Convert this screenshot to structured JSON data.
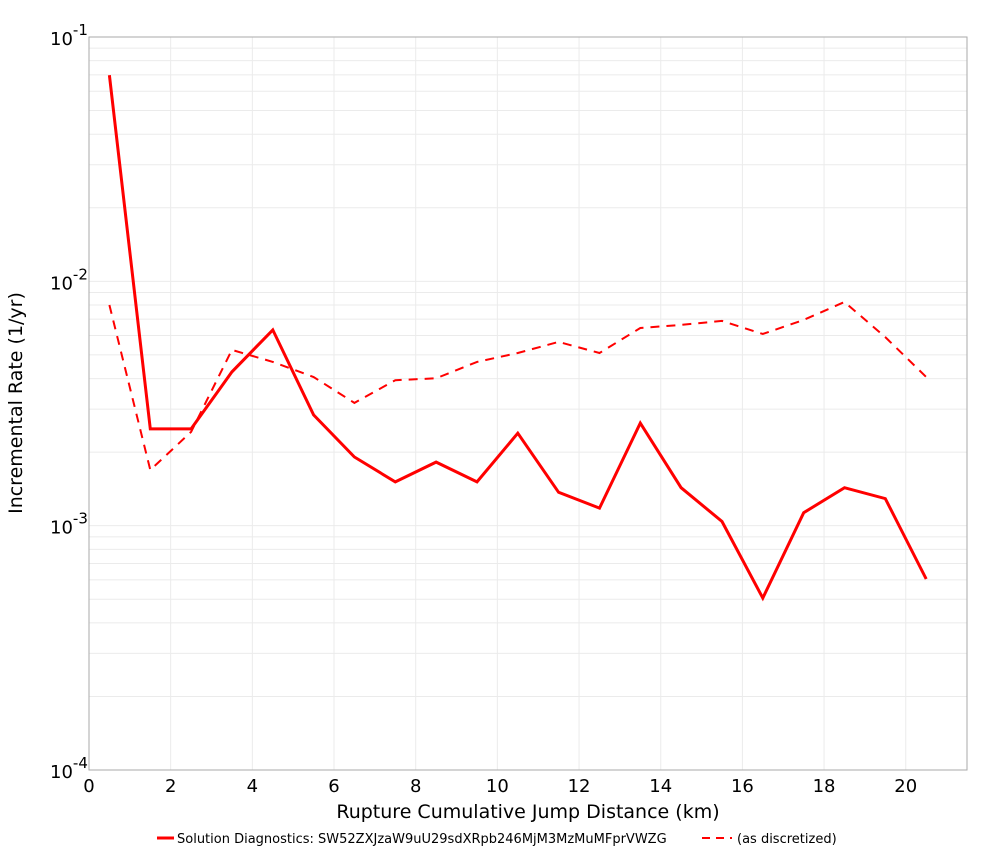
{
  "chart_data": {
    "type": "line",
    "title": "",
    "xlabel": "Rupture Cumulative Jump Distance (km)",
    "ylabel": "Incremental Rate (1/yr)",
    "xlim": [
      0,
      21.5
    ],
    "ylim": [
      0.0001,
      0.1
    ],
    "yscale": "log",
    "grid": true,
    "legend_position": "bottom",
    "x_ticks": [
      0,
      2,
      4,
      6,
      8,
      10,
      12,
      14,
      16,
      18,
      20
    ],
    "y_ticks": [
      {
        "value": 0.1,
        "base": "10",
        "exp": "-1"
      },
      {
        "value": 0.01,
        "base": "10",
        "exp": "-2"
      },
      {
        "value": 0.001,
        "base": "10",
        "exp": "-3"
      },
      {
        "value": 0.0001,
        "base": "10",
        "exp": "-4"
      }
    ],
    "x": [
      0.5,
      1.5,
      2.5,
      3.5,
      4.5,
      5.5,
      6.5,
      7.5,
      8.5,
      9.5,
      10.5,
      11.5,
      12.5,
      13.5,
      14.5,
      15.5,
      16.5,
      17.5,
      18.5,
      19.5,
      20.5
    ],
    "series": [
      {
        "name": "Solution Diagnostics: SW52ZXJzaW9uU29sdXRpb246MjM3MzMuMFprVWZG",
        "style": "solid",
        "color": "#ff0000",
        "values": [
          0.0698,
          0.00249,
          0.00249,
          0.00426,
          0.00633,
          0.00284,
          0.00191,
          0.00151,
          0.00182,
          0.00151,
          0.00239,
          0.00137,
          0.00118,
          0.00263,
          0.00143,
          0.00104,
          0.000506,
          0.00113,
          0.00143,
          0.00129,
          0.000605
        ]
      },
      {
        "name": "(as discretized)",
        "style": "dashed",
        "color": "#ff0000",
        "values": [
          0.008,
          0.00169,
          0.00242,
          0.00524,
          0.00468,
          0.00406,
          0.00318,
          0.00394,
          0.00401,
          0.00468,
          0.00509,
          0.00565,
          0.00509,
          0.00644,
          0.00663,
          0.00689,
          0.00609,
          0.00695,
          0.00823,
          0.00591,
          0.00406
        ]
      }
    ]
  },
  "legend": {
    "items": [
      {
        "label": "Solution Diagnostics: SW52ZXJzaW9uU29sdXRpb246MjM3MzMuMFprVWZG",
        "style": "solid"
      },
      {
        "label": "(as discretized)",
        "style": "dashed"
      }
    ]
  }
}
